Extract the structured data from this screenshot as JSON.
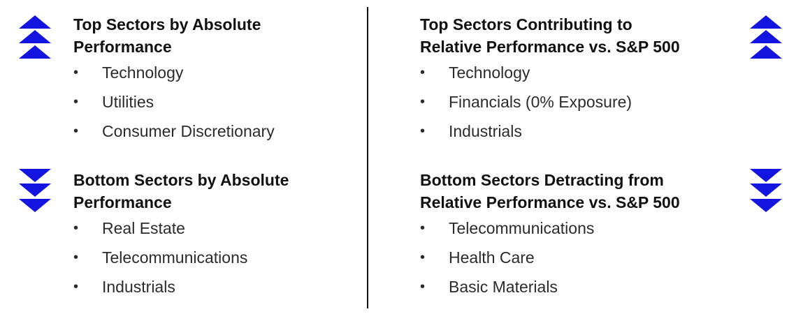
{
  "colors": {
    "arrow_blue": "#1414e0",
    "divider": "#111111"
  },
  "icons": {
    "up": "triple-chevron-up-icon",
    "down": "triple-chevron-down-icon"
  },
  "sections": {
    "top_absolute": {
      "title_line1": "Top Sectors by Absolute",
      "title_line2": "Performance",
      "items": [
        "Technology",
        "Utilities",
        "Consumer Discretionary"
      ]
    },
    "bottom_absolute": {
      "title_line1": "Bottom Sectors by Absolute",
      "title_line2": "Performance",
      "items": [
        "Real Estate",
        "Telecommunications",
        "Industrials"
      ]
    },
    "top_relative": {
      "title_line1": "Top Sectors Contributing to",
      "title_line2": "Relative Performance vs. S&P 500",
      "items": [
        "Technology",
        "Financials (0% Exposure)",
        "Industrials"
      ]
    },
    "bottom_relative": {
      "title_line1": "Bottom Sectors Detracting from",
      "title_line2": "Relative Performance vs. S&P 500",
      "items": [
        "Telecommunications",
        "Health Care",
        "Basic Materials"
      ]
    }
  }
}
